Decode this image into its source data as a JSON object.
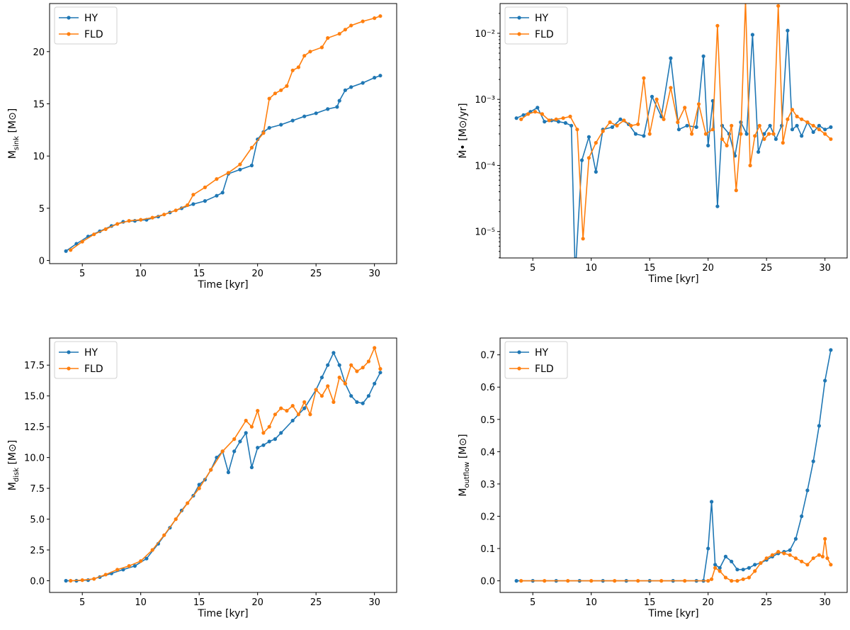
{
  "chart_data": [
    {
      "type": "line",
      "xlabel": "Time [kyr]",
      "ylabel_main": "M",
      "ylabel_sub": "sink",
      "ylabel_unit": "[M⊙]",
      "xlim": [
        2.2,
        31.9
      ],
      "ylim": [
        -0.3,
        24.6
      ],
      "xticks": [
        5,
        10,
        15,
        20,
        25,
        30
      ],
      "yticks": [
        0,
        5,
        10,
        15,
        20
      ],
      "ylog": false,
      "legend_position": "upper-left",
      "series": [
        {
          "name": "HY",
          "color": "#1f77b4",
          "x": [
            3.6,
            4.5,
            5.5,
            6.5,
            7.5,
            8.5,
            9.5,
            10.5,
            11.5,
            12.5,
            13.5,
            14.5,
            15.5,
            16.5,
            17.0,
            17.5,
            18.5,
            19.5,
            20.0,
            20.5,
            21.0,
            22.0,
            23.0,
            24.0,
            25.0,
            26.0,
            26.8,
            27.0,
            27.5,
            28.0,
            29.0,
            30.0,
            30.5
          ],
          "values": [
            0.9,
            1.6,
            2.3,
            2.8,
            3.3,
            3.7,
            3.8,
            3.9,
            4.2,
            4.6,
            5.0,
            5.4,
            5.7,
            6.2,
            6.5,
            8.3,
            8.7,
            9.1,
            11.6,
            12.3,
            12.7,
            13.0,
            13.4,
            13.8,
            14.1,
            14.5,
            14.7,
            15.3,
            16.3,
            16.6,
            17.0,
            17.5,
            17.7
          ]
        },
        {
          "name": "FLD",
          "color": "#ff7f0e",
          "x": [
            4.0,
            5.0,
            6.0,
            7.0,
            8.0,
            9.0,
            10.0,
            11.0,
            12.0,
            13.0,
            14.0,
            14.5,
            15.5,
            16.5,
            17.5,
            18.5,
            19.5,
            20.5,
            21.0,
            21.5,
            22.0,
            22.5,
            23.0,
            23.5,
            24.0,
            24.5,
            25.5,
            26.0,
            27.0,
            27.5,
            28.0,
            29.0,
            30.0,
            30.5
          ],
          "values": [
            1.0,
            1.8,
            2.5,
            3.0,
            3.5,
            3.8,
            3.9,
            4.1,
            4.4,
            4.8,
            5.3,
            6.3,
            7.0,
            7.8,
            8.4,
            9.2,
            10.8,
            12.2,
            15.5,
            16.0,
            16.3,
            16.7,
            18.2,
            18.5,
            19.6,
            20.0,
            20.4,
            21.3,
            21.7,
            22.1,
            22.5,
            22.9,
            23.2,
            23.4
          ]
        }
      ]
    },
    {
      "type": "line",
      "xlabel": "Time [kyr]",
      "ylabel_main": "Ṁ•",
      "ylabel_sub": "",
      "ylabel_unit": "[M⊙/yr]",
      "xlim": [
        2.2,
        31.9
      ],
      "ylim_log": [
        -5.4,
        -1.55
      ],
      "xticks": [
        5,
        10,
        15,
        20,
        25,
        30
      ],
      "yticks_exp": [
        -5,
        -4,
        -3,
        -2
      ],
      "ytick_labels": [
        "10⁻⁵",
        "10⁻⁴",
        "10⁻³",
        "10⁻²"
      ],
      "ylog": true,
      "legend_position": "upper-left",
      "series": [
        {
          "name": "HY",
          "color": "#1f77b4",
          "x": [
            3.6,
            4.2,
            4.8,
            5.4,
            6.0,
            6.6,
            7.2,
            7.8,
            8.3,
            8.6,
            8.7,
            9.2,
            9.8,
            10.4,
            11.0,
            11.8,
            12.5,
            13.2,
            13.8,
            14.5,
            15.2,
            16.0,
            16.8,
            17.5,
            18.2,
            19.0,
            19.6,
            20.0,
            20.4,
            20.8,
            21.2,
            21.8,
            22.3,
            22.8,
            23.3,
            23.8,
            24.3,
            24.8,
            25.3,
            25.8,
            26.3,
            26.8,
            27.2,
            27.6,
            28.0,
            28.5,
            29.0,
            29.5,
            30.0,
            30.5
          ],
          "values": [
            0.00052,
            0.00058,
            0.00065,
            0.00075,
            0.00046,
            0.00048,
            0.00046,
            0.00044,
            0.0004,
            3e-06,
            3e-06,
            0.00012,
            0.00027,
            8e-05,
            0.00035,
            0.00038,
            0.0005,
            0.00042,
            0.0003,
            0.00028,
            0.0011,
            0.00055,
            0.0042,
            0.00035,
            0.0004,
            0.00038,
            0.0045,
            0.0002,
            0.00095,
            2.4e-05,
            0.0004,
            0.0003,
            0.00014,
            0.00045,
            0.0003,
            0.0095,
            0.00016,
            0.0003,
            0.0004,
            0.00025,
            0.0004,
            0.011,
            0.00035,
            0.0004,
            0.00028,
            0.00045,
            0.00032,
            0.0004,
            0.00035,
            0.00038
          ]
        },
        {
          "name": "FLD",
          "color": "#ff7f0e",
          "x": [
            4.0,
            4.6,
            5.2,
            5.8,
            6.4,
            7.0,
            7.6,
            8.2,
            8.8,
            9.3,
            9.8,
            10.4,
            11.0,
            11.6,
            12.2,
            12.8,
            13.4,
            14.0,
            14.5,
            15.0,
            15.6,
            16.2,
            16.8,
            17.4,
            18.0,
            18.6,
            19.2,
            19.8,
            20.4,
            20.8,
            21.2,
            21.6,
            22.0,
            22.4,
            22.8,
            23.2,
            23.6,
            24.0,
            24.4,
            24.8,
            25.2,
            25.6,
            26.0,
            26.4,
            26.8,
            27.2,
            27.6,
            28.0,
            28.5,
            29.0,
            29.5,
            30.0,
            30.5
          ],
          "values": [
            0.0005,
            0.0006,
            0.00065,
            0.0006,
            0.00048,
            0.0005,
            0.00052,
            0.00055,
            0.00035,
            7.8e-06,
            0.00013,
            0.00022,
            0.00033,
            0.00045,
            0.0004,
            0.00048,
            0.0004,
            0.00042,
            0.0021,
            0.0003,
            0.001,
            0.0005,
            0.0015,
            0.00045,
            0.00075,
            0.0003,
            0.00085,
            0.0003,
            0.00035,
            0.013,
            0.00025,
            0.0002,
            0.0004,
            4.2e-05,
            0.0003,
            0.031,
            0.0001,
            0.00028,
            0.0004,
            0.00025,
            0.0003,
            0.0003,
            0.026,
            0.00022,
            0.0005,
            0.0007,
            0.00055,
            0.0005,
            0.00045,
            0.0004,
            0.00035,
            0.0003,
            0.00025
          ]
        }
      ]
    },
    {
      "type": "line",
      "xlabel": "Time [kyr]",
      "ylabel_main": "M",
      "ylabel_sub": "disk",
      "ylabel_unit": "[M⊙]",
      "xlim": [
        2.2,
        31.9
      ],
      "ylim": [
        -0.95,
        19.7
      ],
      "xticks": [
        5,
        10,
        15,
        20,
        25,
        30
      ],
      "yticks": [
        0.0,
        2.5,
        5.0,
        7.5,
        10.0,
        12.5,
        15.0,
        17.5
      ],
      "ytick_labels": [
        "0.0",
        "2.5",
        "5.0",
        "7.5",
        "10.0",
        "12.5",
        "15.0",
        "17.5"
      ],
      "ylog": false,
      "legend_position": "upper-left",
      "series": [
        {
          "name": "HY",
          "color": "#1f77b4",
          "x": [
            3.6,
            4.5,
            5.5,
            6.5,
            7.5,
            8.5,
            9.5,
            10.5,
            11.5,
            12.5,
            13.5,
            14.5,
            15.0,
            15.5,
            16.0,
            16.5,
            17.0,
            17.5,
            18.0,
            18.5,
            19.0,
            19.5,
            20.0,
            20.5,
            21.0,
            21.5,
            22.0,
            23.0,
            24.0,
            25.0,
            25.5,
            26.0,
            26.5,
            27.0,
            27.5,
            28.0,
            28.5,
            29.0,
            29.5,
            30.0,
            30.5
          ],
          "values": [
            0.0,
            0.0,
            0.05,
            0.3,
            0.6,
            0.9,
            1.2,
            1.8,
            3.0,
            4.3,
            5.7,
            6.9,
            7.8,
            8.2,
            9.0,
            10.0,
            10.5,
            8.8,
            10.5,
            11.3,
            12.0,
            9.2,
            10.8,
            11.0,
            11.3,
            11.5,
            12.0,
            13.0,
            14.0,
            15.5,
            16.5,
            17.5,
            18.5,
            17.5,
            16.0,
            15.0,
            14.5,
            14.4,
            15.0,
            16.0,
            16.9
          ]
        },
        {
          "name": "FLD",
          "color": "#ff7f0e",
          "x": [
            4.0,
            5.0,
            6.0,
            7.0,
            8.0,
            9.0,
            10.0,
            11.0,
            12.0,
            13.0,
            14.0,
            15.0,
            16.0,
            17.0,
            18.0,
            19.0,
            19.5,
            20.0,
            20.5,
            21.0,
            21.5,
            22.0,
            22.5,
            23.0,
            23.5,
            24.0,
            24.5,
            25.0,
            25.5,
            26.0,
            26.5,
            27.0,
            27.5,
            28.0,
            28.5,
            29.0,
            29.5,
            30.0,
            30.5
          ],
          "values": [
            0.0,
            0.05,
            0.15,
            0.5,
            0.9,
            1.2,
            1.6,
            2.5,
            3.7,
            5.0,
            6.3,
            7.5,
            9.0,
            10.5,
            11.5,
            13.0,
            12.5,
            13.8,
            12.0,
            12.5,
            13.5,
            14.0,
            13.8,
            14.2,
            13.5,
            14.5,
            13.5,
            15.5,
            15.0,
            15.8,
            14.5,
            16.5,
            16.0,
            17.5,
            17.0,
            17.3,
            17.8,
            18.9,
            17.2
          ]
        }
      ]
    },
    {
      "type": "line",
      "xlabel": "Time [kyr]",
      "ylabel_main": "M",
      "ylabel_sub": "outflow",
      "ylabel_unit": "[M⊙]",
      "xlim": [
        2.2,
        31.9
      ],
      "ylim": [
        -0.036,
        0.752
      ],
      "xticks": [
        5,
        10,
        15,
        20,
        25,
        30
      ],
      "yticks": [
        0.0,
        0.1,
        0.2,
        0.3,
        0.4,
        0.5,
        0.6,
        0.7
      ],
      "ytick_labels": [
        "0.0",
        "0.1",
        "0.2",
        "0.3",
        "0.4",
        "0.5",
        "0.6",
        "0.7"
      ],
      "ylog": false,
      "legend_position": "upper-left",
      "series": [
        {
          "name": "HY",
          "color": "#1f77b4",
          "x": [
            3.6,
            5.0,
            7.0,
            9.0,
            11.0,
            13.0,
            15.0,
            17.0,
            19.0,
            19.6,
            20.0,
            20.3,
            20.6,
            21.0,
            21.5,
            22.0,
            22.5,
            23.0,
            23.5,
            24.0,
            24.5,
            25.0,
            25.5,
            26.0,
            26.5,
            27.0,
            27.5,
            28.0,
            28.5,
            29.0,
            29.5,
            30.0,
            30.5
          ],
          "values": [
            0.0,
            0.0,
            0.0,
            0.0,
            0.0,
            0.0,
            0.0,
            0.0,
            0.0,
            0.0,
            0.1,
            0.245,
            0.05,
            0.04,
            0.075,
            0.06,
            0.035,
            0.035,
            0.04,
            0.05,
            0.055,
            0.065,
            0.075,
            0.085,
            0.09,
            0.095,
            0.13,
            0.2,
            0.28,
            0.37,
            0.48,
            0.62,
            0.715
          ]
        },
        {
          "name": "FLD",
          "color": "#ff7f0e",
          "x": [
            4.0,
            6.0,
            8.0,
            10.0,
            12.0,
            14.0,
            16.0,
            18.0,
            20.0,
            20.3,
            20.6,
            21.0,
            21.5,
            22.0,
            22.5,
            23.0,
            23.5,
            24.0,
            24.5,
            25.0,
            25.5,
            26.0,
            26.5,
            27.0,
            27.5,
            28.0,
            28.5,
            29.0,
            29.5,
            29.8,
            30.0,
            30.2,
            30.5
          ],
          "values": [
            0.0,
            0.0,
            0.0,
            0.0,
            0.0,
            0.0,
            0.0,
            0.0,
            0.0,
            0.005,
            0.04,
            0.03,
            0.01,
            0.0,
            0.0,
            0.005,
            0.01,
            0.03,
            0.055,
            0.07,
            0.08,
            0.09,
            0.085,
            0.08,
            0.07,
            0.06,
            0.05,
            0.07,
            0.08,
            0.075,
            0.13,
            0.07,
            0.05
          ]
        }
      ]
    }
  ]
}
